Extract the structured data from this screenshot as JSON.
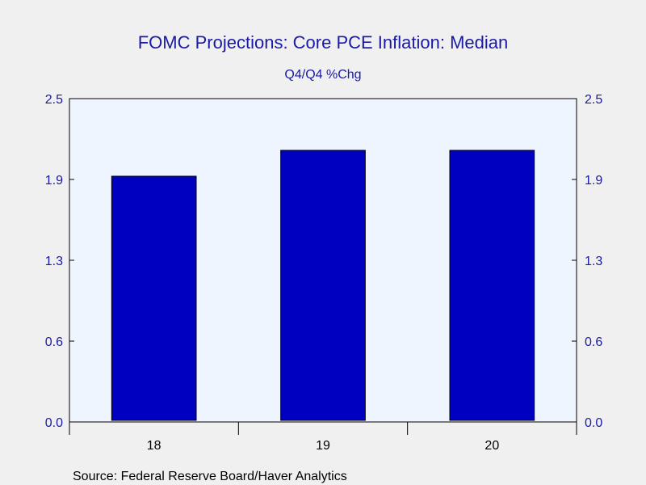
{
  "colors": {
    "background": "#f0f0f0",
    "plot_background": "#eef5ff",
    "bar_fill": "#0000c0",
    "bar_stroke": "#000000",
    "title": "#1a1aa6",
    "axis_text": "#1a1aa6"
  },
  "chart_data": {
    "type": "bar",
    "title": "FOMC Projections: Core PCE Inflation: Median",
    "subtitle": "Q4/Q4 %Chg",
    "categories": [
      "18",
      "19",
      "20"
    ],
    "series": [
      {
        "values": [
          1.9,
          2.1,
          2.1
        ]
      }
    ],
    "ylim": [
      0.0,
      2.5
    ],
    "yticks": [
      "0.0",
      "0.6",
      "1.3",
      "1.9",
      "2.5"
    ],
    "ytick_values": [
      0.0,
      0.625,
      1.25,
      1.875,
      2.5
    ],
    "grid": false,
    "legend": "none",
    "source": "Source:  Federal Reserve Board/Haver Analytics"
  }
}
